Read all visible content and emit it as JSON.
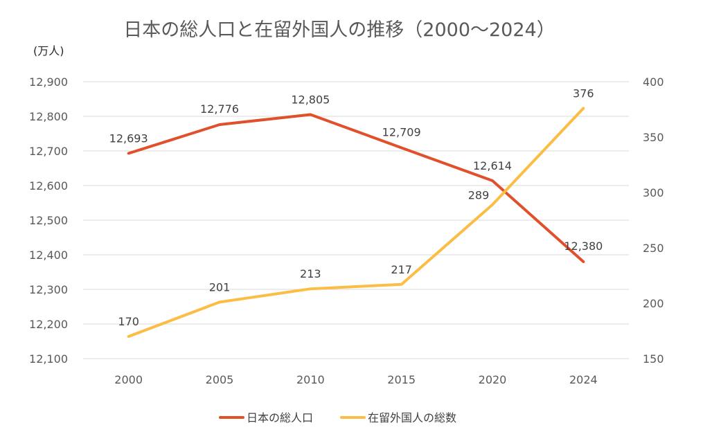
{
  "chart_data": {
    "type": "line",
    "title": "日本の総人口と在留外国人の推移（2000〜2024）",
    "y_unit_label": "(万人)",
    "categories": [
      "2000",
      "2005",
      "2010",
      "2015",
      "2020",
      "2024"
    ],
    "y_left": {
      "min": 12100,
      "max": 12900,
      "step": 100,
      "ticks": [
        "12,100",
        "12,200",
        "12,300",
        "12,400",
        "12,500",
        "12,600",
        "12,700",
        "12,800",
        "12,900"
      ]
    },
    "y_right": {
      "min": 150,
      "max": 400,
      "step": 50,
      "ticks": [
        "150",
        "200",
        "250",
        "300",
        "350",
        "400"
      ]
    },
    "series": [
      {
        "name": "日本の総人口",
        "axis": "left",
        "color": "#e0502a",
        "values": [
          12693,
          12776,
          12805,
          12709,
          12614,
          12380
        ],
        "labels": [
          "12,693",
          "12,776",
          "12,805",
          "12,709",
          "12,614",
          "12,380"
        ]
      },
      {
        "name": "在留外国人の総数",
        "axis": "right",
        "color": "#fbbd44",
        "values": [
          170,
          201,
          213,
          217,
          289,
          376
        ],
        "labels": [
          "170",
          "201",
          "213",
          "217",
          "289",
          "376"
        ]
      }
    ],
    "legend_position": "bottom",
    "grid": true
  }
}
